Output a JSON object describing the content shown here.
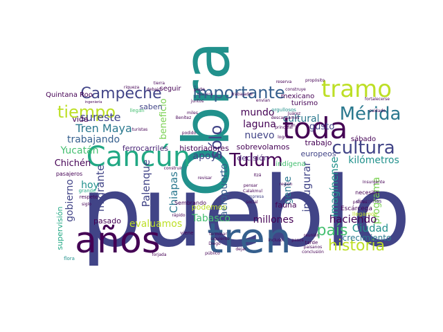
{
  "palette": [
    "#440154",
    "#482475",
    "#414487",
    "#355f8d",
    "#2a788e",
    "#21918c",
    "#22a884",
    "#44bf70",
    "#7ad151",
    "#bddf26",
    "#fde725"
  ],
  "words": [
    {
      "text": "pueblo",
      "color": "#414487"
    },
    {
      "text": "Obra",
      "color": "#21918c"
    },
    {
      "text": "años",
      "color": "#440154"
    },
    {
      "text": "tren",
      "color": "#355f8d"
    },
    {
      "text": "toda",
      "color": "#440154"
    },
    {
      "text": "Cancún",
      "color": "#22a884"
    },
    {
      "text": "tramo",
      "color": "#bddf26"
    },
    {
      "text": "importante",
      "color": "#355f8d"
    },
    {
      "text": "Campeche",
      "color": "#414487"
    },
    {
      "text": "tiempo",
      "color": "#bddf26"
    },
    {
      "text": "Mérida",
      "color": "#2a788e"
    },
    {
      "text": "cultura",
      "color": "#414487"
    },
    {
      "text": "Tulum",
      "color": "#440154"
    },
    {
      "text": "historia",
      "color": "#bddf26"
    },
    {
      "text": "país",
      "color": "#44bf70"
    },
    {
      "text": "sólo",
      "color": "#414487"
    },
    {
      "text": "Tren Maya",
      "color": "#2a788e"
    },
    {
      "text": "sureste",
      "color": "#414487"
    },
    {
      "text": "trabajando",
      "color": "#355f8d"
    },
    {
      "text": "mundo",
      "color": "#440154"
    },
    {
      "text": "laguna",
      "color": "#440154"
    },
    {
      "text": "cultural",
      "color": "#2a788e"
    },
    {
      "text": "gusto",
      "color": "#414487"
    },
    {
      "text": "Yucatán",
      "color": "#44bf70"
    },
    {
      "text": "ferrocarriles",
      "color": "#482475"
    },
    {
      "text": "historiadores",
      "color": "#440154"
    },
    {
      "text": "sobrevolamos",
      "color": "#440154"
    },
    {
      "text": "europeos",
      "color": "#414487"
    },
    {
      "text": "kilómetros",
      "color": "#21918c"
    },
    {
      "text": "Chichén",
      "color": "#440154"
    },
    {
      "text": "apoyo",
      "color": "#414487"
    },
    {
      "text": "nuevo",
      "color": "#414487"
    },
    {
      "text": "decisión",
      "color": "#482475"
    },
    {
      "text": "trabajo",
      "color": "#440154"
    },
    {
      "text": "sábado",
      "color": "#440154"
    },
    {
      "text": "hoy",
      "color": "#21918c"
    },
    {
      "text": "migrante",
      "color": "#414487"
    },
    {
      "text": "Palenque",
      "color": "#414487"
    },
    {
      "text": "Chiapas",
      "color": "#2a788e"
    },
    {
      "text": "aeropuerto",
      "color": "#355f8d"
    },
    {
      "text": "gobierno",
      "color": "#414487"
    },
    {
      "text": "inaugurar",
      "color": "#414487"
    },
    {
      "text": "Imagínense",
      "color": "#21918c"
    },
    {
      "text": "gente",
      "color": "#2a788e"
    },
    {
      "text": "programa",
      "color": "#7ad151"
    },
    {
      "text": "Tabasco",
      "color": "#44bf70"
    },
    {
      "text": "millones",
      "color": "#440154"
    },
    {
      "text": "haciendo",
      "color": "#440154"
    },
    {
      "text": "Ciudad",
      "color": "#21918c"
    },
    {
      "text": "crecimiento",
      "color": "#2a788e"
    },
    {
      "text": "evaluamos",
      "color": "#bddf26"
    },
    {
      "text": "pasado",
      "color": "#440154"
    },
    {
      "text": "supervisión",
      "color": "#22a884"
    },
    {
      "text": "podemos",
      "color": "#bddf26"
    },
    {
      "text": "beneficio",
      "color": "#7ad151"
    },
    {
      "text": "seguir",
      "color": "#440154"
    },
    {
      "text": "saben",
      "color": "#414487"
    },
    {
      "text": "vida",
      "color": "#440154"
    },
    {
      "text": "fauna",
      "color": "#440154"
    },
    {
      "text": "indígena",
      "color": "#44bf70"
    },
    {
      "text": "mexicano",
      "color": "#440154"
    },
    {
      "text": "turismo",
      "color": "#440154"
    },
    {
      "text": "Quintana Roo",
      "color": "#440154"
    },
    {
      "text": "pasajeros",
      "color": "#440154"
    },
    {
      "text": "Sembrando",
      "color": "#440154"
    },
    {
      "text": "Escárcega",
      "color": "#440154"
    },
    {
      "text": "necesita",
      "color": "#440154"
    },
    {
      "text": "disciplinas",
      "color": "#482475"
    },
    {
      "text": "llegamos",
      "color": "#bddf26"
    },
    {
      "text": "pobres",
      "color": "#440154"
    },
    {
      "text": "tarde",
      "color": "#440154"
    },
    {
      "text": "paisanos",
      "color": "#440154"
    },
    {
      "text": "orgullosos",
      "color": "#21918c"
    },
    {
      "text": "descansamos",
      "color": "#440154"
    },
    {
      "text": "llegan",
      "color": "#44bf70"
    },
    {
      "text": "turistas",
      "color": "#440154"
    },
    {
      "text": "respeto",
      "color": "#440154"
    },
    {
      "text": "grande",
      "color": "#22a884"
    },
    {
      "text": "siglo",
      "color": "#440154"
    },
    {
      "text": "viene",
      "color": "#440154"
    },
    {
      "text": "pensar",
      "color": "#440154"
    },
    {
      "text": "empresa",
      "color": "#414487"
    },
    {
      "text": "social",
      "color": "#440154"
    },
    {
      "text": "región",
      "color": "#440154"
    },
    {
      "text": "lograr",
      "color": "#440154"
    },
    {
      "text": "principal",
      "color": "#440154"
    },
    {
      "text": "Benítez",
      "color": "#440154"
    },
    {
      "text": "manera",
      "color": "#482475"
    },
    {
      "text": "trabajador",
      "color": "#440154"
    },
    {
      "text": "reserva",
      "color": "#440154"
    },
    {
      "text": "construye",
      "color": "#440154"
    },
    {
      "text": "riqueza",
      "color": "#440154"
    },
    {
      "text": "ingeniería",
      "color": "#440154"
    },
    {
      "text": "flora",
      "color": "#21918c"
    },
    {
      "text": "dejar",
      "color": "#440154"
    },
    {
      "text": "incluso",
      "color": "#440154"
    },
    {
      "text": "reunión",
      "color": "#440154"
    },
    {
      "text": "pasos",
      "color": "#440154"
    },
    {
      "text": "Diego",
      "color": "#440154"
    },
    {
      "text": "terminar",
      "color": "#440154"
    },
    {
      "text": "juntos",
      "color": "#440154"
    },
    {
      "text": "debajo",
      "color": "#440154"
    },
    {
      "text": "tierra",
      "color": "#440154"
    },
    {
      "text": "parte",
      "color": "#440154"
    },
    {
      "text": "envían",
      "color": "#440154"
    },
    {
      "text": "construir",
      "color": "#440154"
    },
    {
      "text": "forjada",
      "color": "#440154"
    },
    {
      "text": "Insurgente",
      "color": "#440154"
    },
    {
      "text": "fortalecerse",
      "color": "#440154"
    },
    {
      "text": "podido",
      "color": "#440154"
    },
    {
      "text": "miles",
      "color": "#440154"
    },
    {
      "text": "revisar",
      "color": "#440154"
    },
    {
      "text": "Juárez",
      "color": "#440154"
    },
    {
      "text": "Calakmul",
      "color": "#440154"
    },
    {
      "text": "siguiente",
      "color": "#440154"
    },
    {
      "text": "público",
      "color": "#440154"
    },
    {
      "text": "gran",
      "color": "#440154"
    },
    {
      "text": "Itzá",
      "color": "#440154"
    },
    {
      "text": "rápido",
      "color": "#440154"
    },
    {
      "text": "conclusión",
      "color": "#440154"
    },
    {
      "text": "propósito",
      "color": "#440154"
    },
    {
      "text": "cuidado",
      "color": "#440154"
    }
  ]
}
